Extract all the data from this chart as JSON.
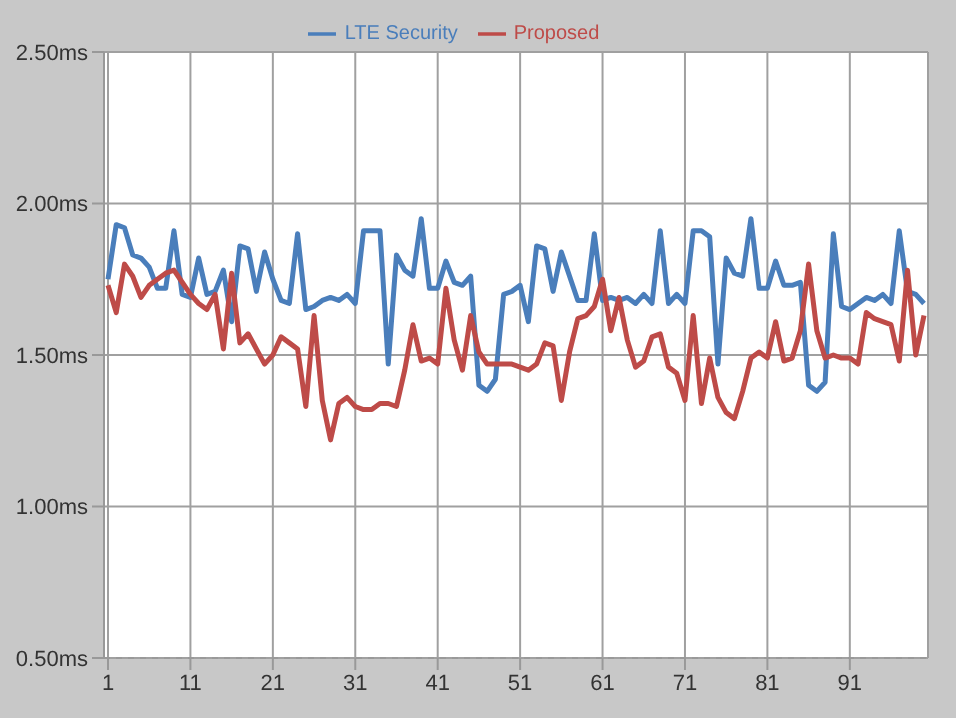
{
  "chart_data": {
    "type": "line",
    "categories": [
      "1",
      null,
      null,
      null,
      null,
      null,
      null,
      null,
      null,
      null,
      "11",
      null,
      null,
      null,
      null,
      null,
      null,
      null,
      null,
      null,
      "21",
      null,
      null,
      null,
      null,
      null,
      null,
      null,
      null,
      null,
      "31",
      null,
      null,
      null,
      null,
      null,
      null,
      null,
      null,
      null,
      "41",
      null,
      null,
      null,
      null,
      null,
      null,
      null,
      null,
      null,
      "51",
      null,
      null,
      null,
      null,
      null,
      null,
      null,
      null,
      null,
      "61",
      null,
      null,
      null,
      null,
      null,
      null,
      null,
      null,
      null,
      "71",
      null,
      null,
      null,
      null,
      null,
      null,
      null,
      null,
      null,
      "81",
      null,
      null,
      null,
      null,
      null,
      null,
      null,
      null,
      null,
      "91",
      null,
      null,
      null,
      null,
      null,
      null,
      null,
      null,
      null
    ],
    "series": [
      {
        "name": "LTE Security",
        "color": "#4a7ebb",
        "values": [
          1.75,
          1.93,
          1.92,
          1.83,
          1.82,
          1.79,
          1.72,
          1.72,
          1.91,
          1.7,
          1.69,
          1.82,
          1.7,
          1.71,
          1.78,
          1.61,
          1.86,
          1.85,
          1.71,
          1.84,
          1.75,
          1.68,
          1.67,
          1.9,
          1.65,
          1.66,
          1.68,
          1.69,
          1.68,
          1.7,
          1.67,
          1.91,
          1.91,
          1.91,
          1.47,
          1.83,
          1.78,
          1.76,
          1.95,
          1.72,
          1.72,
          1.81,
          1.74,
          1.73,
          1.76,
          1.4,
          1.38,
          1.42,
          1.7,
          1.71,
          1.73,
          1.61,
          1.86,
          1.85,
          1.71,
          1.84,
          1.76,
          1.68,
          1.68,
          1.9,
          1.68,
          1.69,
          1.68,
          1.69,
          1.67,
          1.7,
          1.67,
          1.91,
          1.67,
          1.7,
          1.67,
          1.91,
          1.91,
          1.89,
          1.47,
          1.82,
          1.77,
          1.76,
          1.95,
          1.72,
          1.72,
          1.81,
          1.73,
          1.73,
          1.74,
          1.4,
          1.38,
          1.41,
          1.9,
          1.66,
          1.65,
          1.67,
          1.69,
          1.68,
          1.7,
          1.67,
          1.91,
          1.71,
          1.7,
          1.67
        ]
      },
      {
        "name": "Proposed",
        "color": "#be4b48",
        "values": [
          1.73,
          1.64,
          1.8,
          1.76,
          1.69,
          1.73,
          1.75,
          1.77,
          1.78,
          1.74,
          1.7,
          1.67,
          1.65,
          1.7,
          1.52,
          1.77,
          1.54,
          1.57,
          1.52,
          1.47,
          1.5,
          1.56,
          1.54,
          1.52,
          1.33,
          1.63,
          1.35,
          1.22,
          1.34,
          1.36,
          1.33,
          1.32,
          1.32,
          1.34,
          1.34,
          1.33,
          1.45,
          1.6,
          1.48,
          1.49,
          1.47,
          1.72,
          1.55,
          1.45,
          1.63,
          1.51,
          1.47,
          1.47,
          1.47,
          1.47,
          1.46,
          1.45,
          1.47,
          1.54,
          1.53,
          1.35,
          1.51,
          1.62,
          1.63,
          1.66,
          1.75,
          1.58,
          1.69,
          1.55,
          1.46,
          1.48,
          1.56,
          1.57,
          1.46,
          1.44,
          1.35,
          1.63,
          1.34,
          1.49,
          1.36,
          1.31,
          1.29,
          1.38,
          1.49,
          1.51,
          1.49,
          1.61,
          1.48,
          1.49,
          1.58,
          1.8,
          1.58,
          1.49,
          1.5,
          1.49,
          1.49,
          1.47,
          1.64,
          1.62,
          1.61,
          1.6,
          1.48,
          1.78,
          1.5,
          1.63
        ]
      }
    ],
    "ylim": [
      0.5,
      2.5
    ],
    "yticks": [
      {
        "value": 0.5,
        "label": "0.50ms"
      },
      {
        "value": 1.0,
        "label": "1.00ms"
      },
      {
        "value": 1.5,
        "label": "1.50ms"
      },
      {
        "value": 2.0,
        "label": "2.00ms"
      },
      {
        "value": 2.5,
        "label": "2.50ms"
      }
    ],
    "grid": true,
    "legend": "top",
    "marker": "none",
    "line_style": "solid"
  }
}
